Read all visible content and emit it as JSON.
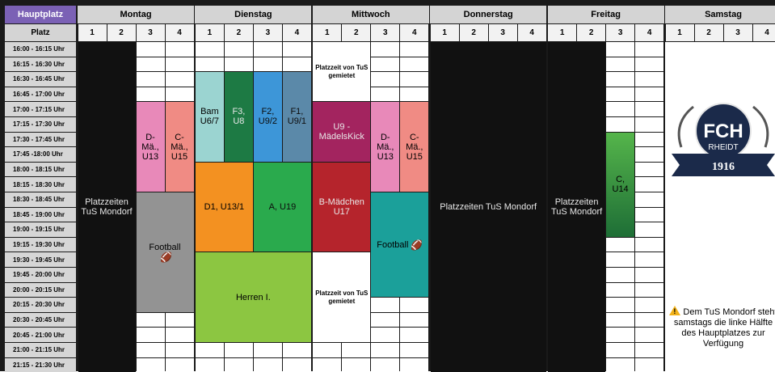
{
  "header": {
    "corner": "Hauptplatz",
    "days": [
      "Montag",
      "Dienstag",
      "Mittwoch",
      "Donnerstag",
      "Freitag",
      "Samstag"
    ]
  },
  "subheader": {
    "label": "Platz",
    "fields": [
      "1",
      "2",
      "3",
      "4"
    ]
  },
  "times": [
    "16:00 - 16:15 Uhr",
    "16:15 - 16:30 Uhr",
    "16:30 - 16:45 Uhr",
    "16:45 - 17:00 Uhr",
    "17:00 - 17:15 Uhr",
    "17:15 - 17:30 Uhr",
    "17:30 - 17:45 Uhr",
    "17:45 -18:00 Uhr",
    "18:00 - 18:15 Uhr",
    "18:15 - 18:30 Uhr",
    "18:30 - 18:45 Uhr",
    "18:45 - 19:00 Uhr",
    "19:00 - 19:15 Uhr",
    "19:15 - 19:30 Uhr",
    "19:30 - 19:45 Uhr",
    "19:45 - 20:00 Uhr",
    "20:00 - 20:15 Uhr",
    "20:15 - 20:30 Uhr",
    "20:30 - 20:45 Uhr",
    "20:45 - 21:00 Uhr",
    "21:00 - 21:15 Uhr",
    "21:15 - 21:30 Uhr"
  ],
  "colors": {
    "occupied": "#111111",
    "teal_light": "#9bd4d1",
    "green_dark": "#1d7a44",
    "blue": "#3d96d8",
    "steel_blue": "#5b89a9",
    "pink": "#e889b9",
    "salmon": "#f08b84",
    "orange": "#f39121",
    "green": "#2aaa4d",
    "maroon": "#a3245f",
    "red": "#b5242c",
    "gray": "#939393",
    "turquoise": "#1ba09a",
    "lime": "#8cc641",
    "green_gradient": "#3a9c43"
  },
  "blocks": [
    {
      "id": "mo-tus",
      "day": 0,
      "col": 0,
      "span": 2,
      "start": 0,
      "end": 22,
      "color": "occupied",
      "text": "Platzzeiten TuS Mondorf",
      "name": "block-montag-platzzeiten-tus",
      "light": true
    },
    {
      "id": "mo-d",
      "day": 0,
      "col": 2,
      "span": 1,
      "start": 4,
      "end": 10,
      "color": "pink",
      "text": "D-Mä., U13",
      "name": "block-montag-d-maedchen-u13"
    },
    {
      "id": "mo-c",
      "day": 0,
      "col": 3,
      "span": 1,
      "start": 4,
      "end": 10,
      "color": "salmon",
      "text": "C-Mä., U15",
      "name": "block-montag-c-maedchen-u15"
    },
    {
      "id": "mo-fb",
      "day": 0,
      "col": 2,
      "span": 2,
      "start": 10,
      "end": 18,
      "color": "gray",
      "text": "Football",
      "ball": true,
      "name": "block-montag-football"
    },
    {
      "id": "di-bam",
      "day": 1,
      "col": 0,
      "span": 1,
      "start": 2,
      "end": 8,
      "color": "teal_light",
      "text": "Bam U6/7",
      "name": "block-dienstag-bambini"
    },
    {
      "id": "di-f3",
      "day": 1,
      "col": 1,
      "span": 1,
      "start": 2,
      "end": 8,
      "color": "green_dark",
      "text": "F3, U8",
      "name": "block-dienstag-f3-u8"
    },
    {
      "id": "di-f2",
      "day": 1,
      "col": 2,
      "span": 1,
      "start": 2,
      "end": 8,
      "color": "blue",
      "text": "F2, U9/2",
      "name": "block-dienstag-f2-u9-2"
    },
    {
      "id": "di-f1",
      "day": 1,
      "col": 3,
      "span": 1,
      "start": 2,
      "end": 8,
      "color": "steel_blue",
      "text": "F1, U9/1",
      "name": "block-dienstag-f1-u9-1"
    },
    {
      "id": "di-d1",
      "day": 1,
      "col": 0,
      "span": 2,
      "start": 8,
      "end": 14,
      "color": "orange",
      "text": "D1, U13/1",
      "name": "block-dienstag-d1-u13-1"
    },
    {
      "id": "di-a",
      "day": 1,
      "col": 2,
      "span": 2,
      "start": 8,
      "end": 14,
      "color": "green",
      "text": "A, U19",
      "name": "block-dienstag-a-u19"
    },
    {
      "id": "di-herren",
      "day": 1,
      "col": 0,
      "span": 4,
      "start": 14,
      "end": 20,
      "color": "lime",
      "text": "Herren I.",
      "name": "block-dienstag-herren-1"
    },
    {
      "id": "mi-tus1",
      "day": 2,
      "col": 0,
      "span": 2,
      "start": 0,
      "end": 4,
      "color": "white",
      "text": "Platzzeit von TuS gemietet",
      "small": true,
      "name": "block-mittwoch-platzzeit-tus-1"
    },
    {
      "id": "mi-u9",
      "day": 2,
      "col": 0,
      "span": 2,
      "start": 4,
      "end": 8,
      "color": "maroon",
      "text": "U9 - MädelsKick",
      "name": "block-mittwoch-u9-maedelskick"
    },
    {
      "id": "mi-d",
      "day": 2,
      "col": 2,
      "span": 1,
      "start": 4,
      "end": 10,
      "color": "pink",
      "text": "D-Mä., U13",
      "name": "block-mittwoch-d-maedchen-u13"
    },
    {
      "id": "mi-c",
      "day": 2,
      "col": 3,
      "span": 1,
      "start": 4,
      "end": 10,
      "color": "salmon",
      "text": "C-Mä., U15",
      "name": "block-mittwoch-c-maedchen-u15"
    },
    {
      "id": "mi-b",
      "day": 2,
      "col": 0,
      "span": 2,
      "start": 8,
      "end": 14,
      "color": "red",
      "text": "B-Mädchen U17",
      "name": "block-mittwoch-b-maedchen-u17"
    },
    {
      "id": "mi-fb",
      "day": 2,
      "col": 2,
      "span": 2,
      "start": 10,
      "end": 17,
      "color": "turquoise",
      "text": "Football",
      "ball": true,
      "name": "block-mittwoch-football"
    },
    {
      "id": "mi-tus2",
      "day": 2,
      "col": 0,
      "span": 2,
      "start": 14,
      "end": 20,
      "color": "white",
      "text": "Platzzeit von TuS gemietet",
      "small": true,
      "name": "block-mittwoch-platzzeit-tus-2"
    },
    {
      "id": "do-tus",
      "day": 3,
      "col": 0,
      "span": 4,
      "start": 0,
      "end": 22,
      "color": "occupied",
      "text": "Platzzeiten TuS Mondorf",
      "name": "block-donnerstag-platzzeiten-tus",
      "light": true
    },
    {
      "id": "fr-tus",
      "day": 4,
      "col": 0,
      "span": 2,
      "start": 0,
      "end": 22,
      "color": "occupied",
      "text": "Platzzeiten TuS Mondorf",
      "name": "block-freitag-platzzeiten-tus",
      "light": true
    },
    {
      "id": "fr-c",
      "day": 4,
      "col": 2,
      "span": 1,
      "start": 6,
      "end": 13,
      "color": "green_gradient",
      "text": "C, U14",
      "name": "block-freitag-c-u14"
    }
  ],
  "logo": {
    "letters": "FCH",
    "club": "RHEIDT",
    "year": "1916"
  },
  "samstag_note": "Dem TuS Mondorf steht samstags die linke Hälfte des Hauptplatzes zur Verfügung"
}
